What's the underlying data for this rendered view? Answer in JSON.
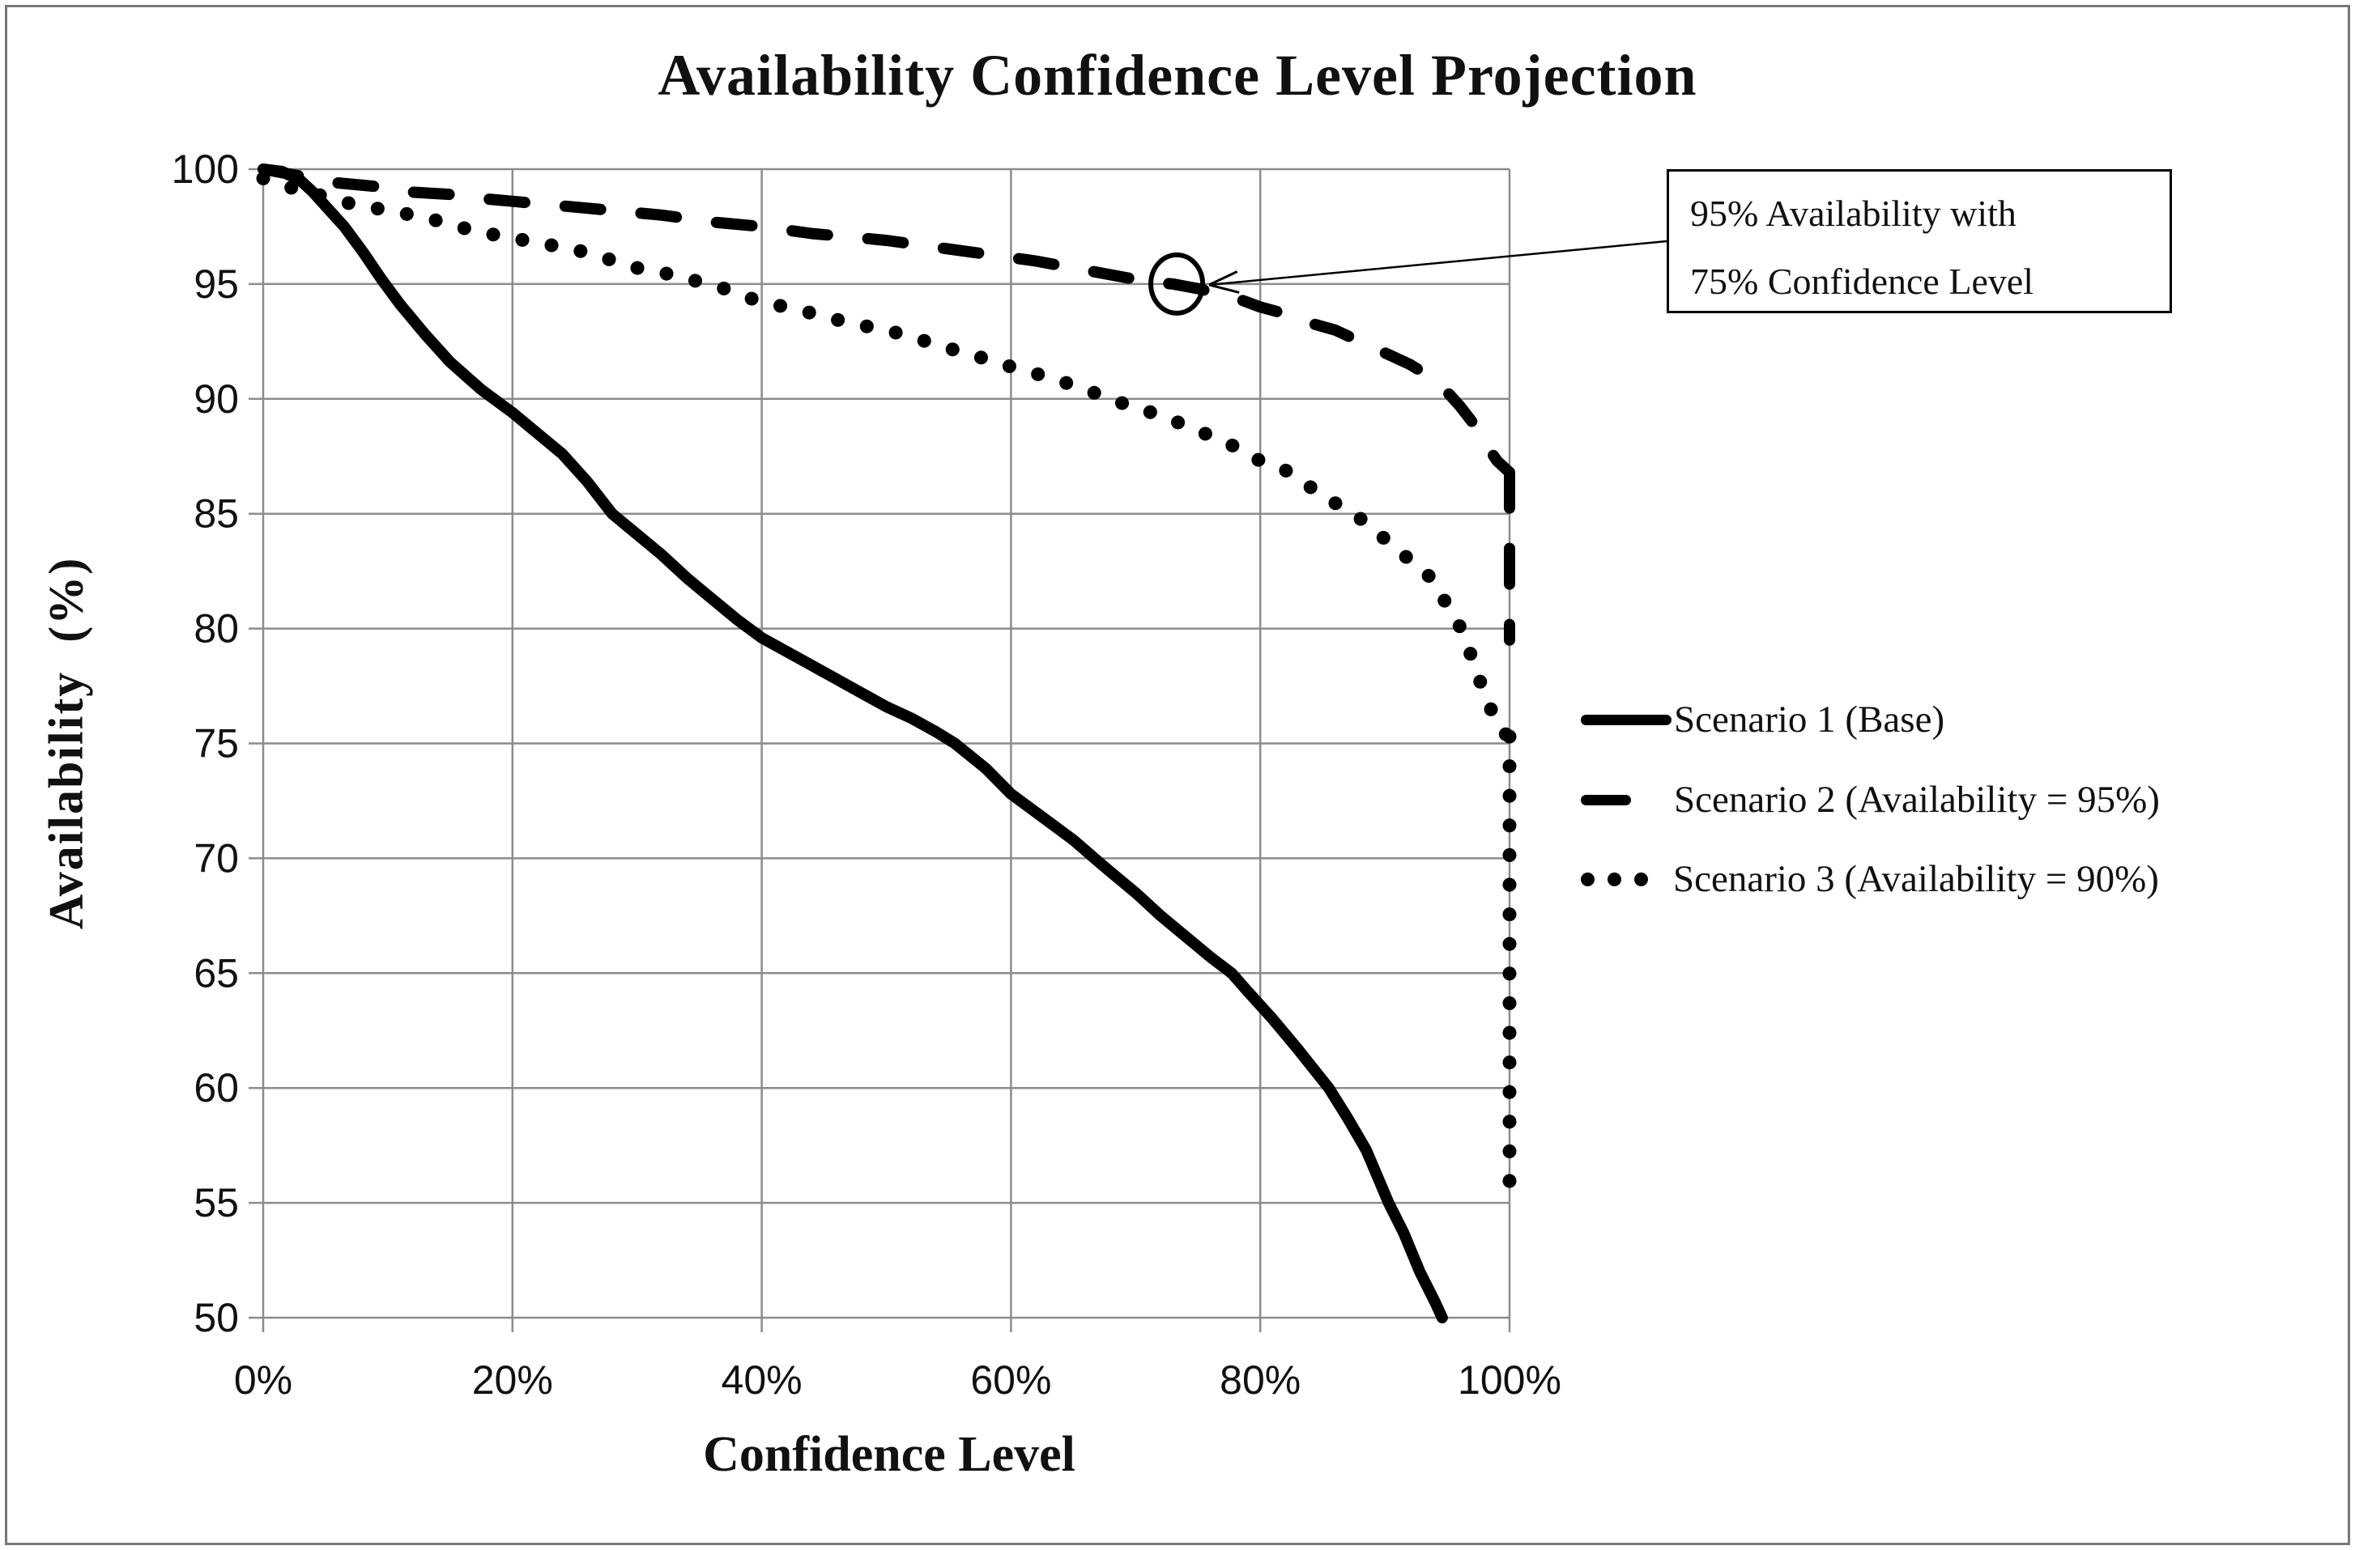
{
  "chart_data": {
    "type": "line",
    "title": "Availability Confidence Level Projection",
    "xlabel": "Confidence Level",
    "ylabel": "Availability (%)",
    "xlim": [
      0,
      100
    ],
    "ylim": [
      50,
      100
    ],
    "grid": true,
    "legend_position": "right-middle",
    "x_ticks": [
      {
        "v": 0,
        "label": "0%"
      },
      {
        "v": 20,
        "label": "20%"
      },
      {
        "v": 40,
        "label": "40%"
      },
      {
        "v": 60,
        "label": "60%"
      },
      {
        "v": 80,
        "label": "80%"
      },
      {
        "v": 100,
        "label": "100%"
      }
    ],
    "y_ticks": [
      {
        "v": 100,
        "label": "100"
      },
      {
        "v": 95,
        "label": "95"
      },
      {
        "v": 90,
        "label": "90"
      },
      {
        "v": 85,
        "label": "85"
      },
      {
        "v": 80,
        "label": "80"
      },
      {
        "v": 75,
        "label": "75"
      },
      {
        "v": 70,
        "label": "70"
      },
      {
        "v": 65,
        "label": "65"
      },
      {
        "v": 60,
        "label": "60"
      },
      {
        "v": 55,
        "label": "55"
      },
      {
        "v": 50,
        "label": "50"
      }
    ],
    "series": [
      {
        "name": "Scenario 1 (Base)",
        "style": "solid",
        "points": [
          [
            0,
            100
          ],
          [
            1.5,
            99.9
          ],
          [
            3,
            99.5
          ],
          [
            4,
            99.0
          ],
          [
            5,
            98.4
          ],
          [
            6.5,
            97.5
          ],
          [
            8,
            96.4
          ],
          [
            9.5,
            95.2
          ],
          [
            11,
            94.1
          ],
          [
            13,
            92.8
          ],
          [
            15,
            91.6
          ],
          [
            17.5,
            90.4
          ],
          [
            20,
            89.4
          ],
          [
            22,
            88.5
          ],
          [
            24,
            87.6
          ],
          [
            26,
            86.4
          ],
          [
            28,
            85.0
          ],
          [
            30,
            84.1
          ],
          [
            32,
            83.2
          ],
          [
            34,
            82.2
          ],
          [
            36,
            81.3
          ],
          [
            38,
            80.4
          ],
          [
            40,
            79.6
          ],
          [
            42,
            79.0
          ],
          [
            44,
            78.4
          ],
          [
            46,
            77.8
          ],
          [
            48,
            77.2
          ],
          [
            50,
            76.6
          ],
          [
            52,
            76.1
          ],
          [
            54,
            75.5
          ],
          [
            55.5,
            75.0
          ],
          [
            58,
            73.9
          ],
          [
            60,
            72.8
          ],
          [
            63,
            71.6
          ],
          [
            65,
            70.8
          ],
          [
            66.7,
            70.0
          ],
          [
            68,
            69.4
          ],
          [
            70,
            68.5
          ],
          [
            72,
            67.5
          ],
          [
            74,
            66.6
          ],
          [
            76,
            65.7
          ],
          [
            77.7,
            65.0
          ],
          [
            79,
            64.2
          ],
          [
            81,
            63.0
          ],
          [
            83,
            61.7
          ],
          [
            85.5,
            60.0
          ],
          [
            87,
            58.7
          ],
          [
            88.5,
            57.3
          ],
          [
            90.3,
            55.0
          ],
          [
            91.5,
            53.7
          ],
          [
            92.8,
            52.0
          ],
          [
            94,
            50.7
          ],
          [
            94.6,
            50.0
          ]
        ]
      },
      {
        "name": "Scenario 2 (Availability = 95%)",
        "style": "dashed",
        "points": [
          [
            0,
            100
          ],
          [
            2,
            99.8
          ],
          [
            4,
            99.6
          ],
          [
            6,
            99.4
          ],
          [
            8,
            99.3
          ],
          [
            10,
            99.2
          ],
          [
            12,
            99.0
          ],
          [
            15,
            98.9
          ],
          [
            18,
            98.7
          ],
          [
            20,
            98.6
          ],
          [
            24,
            98.4
          ],
          [
            28,
            98.2
          ],
          [
            32,
            98.0
          ],
          [
            36,
            97.7
          ],
          [
            40,
            97.5
          ],
          [
            44,
            97.2
          ],
          [
            48,
            97.0
          ],
          [
            50,
            96.9
          ],
          [
            54,
            96.6
          ],
          [
            58,
            96.3
          ],
          [
            62,
            96.0
          ],
          [
            65,
            95.7
          ],
          [
            68,
            95.4
          ],
          [
            71,
            95.1
          ],
          [
            73,
            95.0
          ],
          [
            75,
            94.8
          ],
          [
            78,
            94.4
          ],
          [
            80,
            94.0
          ],
          [
            82,
            93.7
          ],
          [
            84,
            93.3
          ],
          [
            86,
            93.0
          ],
          [
            88,
            92.5
          ],
          [
            90,
            92.0
          ],
          [
            92,
            91.5
          ],
          [
            93.5,
            91.0
          ],
          [
            95,
            90.3
          ],
          [
            96,
            89.7
          ],
          [
            97,
            89.0
          ],
          [
            98,
            88.1
          ],
          [
            99,
            87.3
          ],
          [
            100,
            86.8
          ]
        ],
        "end_drop": {
          "x": 100,
          "from": 86.8,
          "to": 79.5
        }
      },
      {
        "name": "Scenario 3 (Availability = 90%)",
        "style": "dotted",
        "points": [
          [
            0,
            99.6
          ],
          [
            1.4,
            99.3
          ],
          [
            3,
            99.1
          ],
          [
            5,
            98.8
          ],
          [
            7,
            98.5
          ],
          [
            9,
            98.3
          ],
          [
            11,
            98.1
          ],
          [
            13,
            97.9
          ],
          [
            15,
            97.6
          ],
          [
            17,
            97.3
          ],
          [
            20,
            97.0
          ],
          [
            22,
            96.8
          ],
          [
            25,
            96.5
          ],
          [
            27,
            96.2
          ],
          [
            30,
            95.7
          ],
          [
            32,
            95.5
          ],
          [
            35,
            95.1
          ],
          [
            37,
            94.8
          ],
          [
            40,
            94.2
          ],
          [
            42,
            94.0
          ],
          [
            45,
            93.6
          ],
          [
            47,
            93.3
          ],
          [
            50,
            93.0
          ],
          [
            52,
            92.7
          ],
          [
            55,
            92.2
          ],
          [
            57,
            91.9
          ],
          [
            60,
            91.4
          ],
          [
            62,
            91.1
          ],
          [
            65,
            90.6
          ],
          [
            67,
            90.2
          ],
          [
            70,
            89.6
          ],
          [
            72,
            89.3
          ],
          [
            75,
            88.6
          ],
          [
            77,
            88.2
          ],
          [
            80,
            87.3
          ],
          [
            82,
            86.9
          ],
          [
            85,
            85.8
          ],
          [
            86.5,
            85.3
          ],
          [
            88,
            84.8
          ],
          [
            90,
            83.9
          ],
          [
            91.5,
            83.2
          ],
          [
            93,
            82.6
          ],
          [
            94,
            82.0
          ],
          [
            95,
            81.0
          ],
          [
            96,
            80.1
          ],
          [
            96.8,
            79.0
          ],
          [
            97.5,
            77.9
          ],
          [
            98.2,
            76.9
          ],
          [
            98.8,
            76.1
          ],
          [
            99.4,
            75.5
          ],
          [
            100,
            75.3
          ]
        ],
        "end_drop": {
          "x": 100,
          "from": 75.3,
          "to": 55.4
        }
      }
    ],
    "annotation": {
      "lines": [
        "95% Availability with",
        "75% Confidence Level"
      ],
      "target": {
        "x": 73.3,
        "y": 95
      }
    }
  }
}
